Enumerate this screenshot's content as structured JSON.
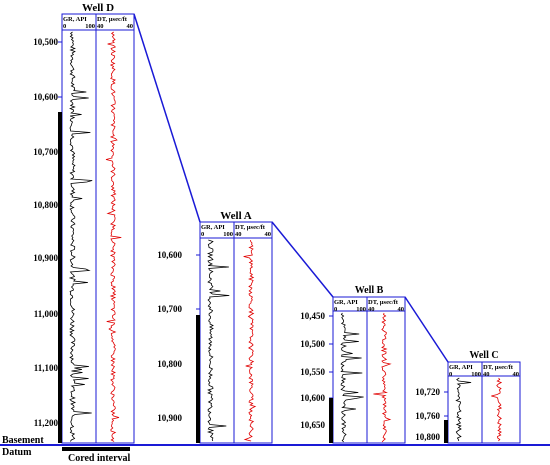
{
  "diagram": {
    "colors": {
      "frame": "#1a1ad6",
      "gr_curve": "#000000",
      "dt_curve": "#e00000",
      "cored": "#000000"
    },
    "legend": {
      "cored_interval": "Cored interval"
    },
    "basement_datum": {
      "line1": "Basement",
      "line2": "Datum"
    },
    "track_headers": {
      "gr_title": "GR, API",
      "gr_min": "0",
      "gr_max": "100",
      "dt_title": "DT, µsec/ft",
      "dt_min": "40",
      "dt_max": "40"
    },
    "wells": [
      {
        "id": "D",
        "name": "Well D",
        "depths": [
          "10,500",
          "10,600",
          "10,700",
          "10,800",
          "10,900",
          "11,000",
          "11,100",
          "11,200"
        ]
      },
      {
        "id": "A",
        "name": "Well A",
        "depths": [
          "10,600",
          "10,700",
          "10,800",
          "10,900"
        ]
      },
      {
        "id": "B",
        "name": "Well B",
        "depths": [
          "10,450",
          "10,500",
          "10,550",
          "10,600",
          "10,650"
        ]
      },
      {
        "id": "C",
        "name": "Well C",
        "depths": [
          "10,720",
          "10,760",
          "10,800"
        ]
      }
    ]
  }
}
